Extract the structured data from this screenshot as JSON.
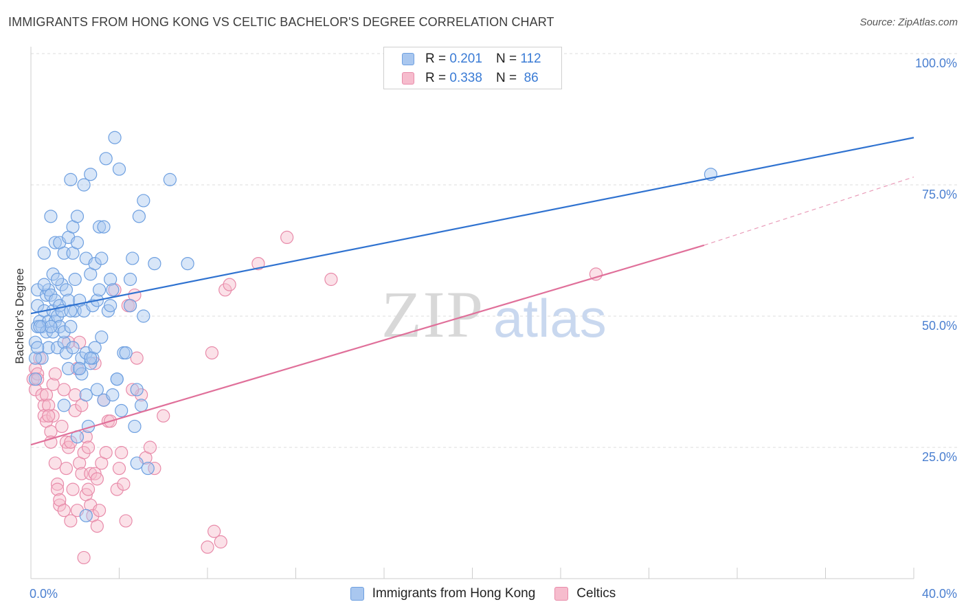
{
  "header": {
    "title": "IMMIGRANTS FROM HONG KONG VS CELTIC BACHELOR'S DEGREE CORRELATION CHART",
    "source": "Source: ZipAtlas.com"
  },
  "watermark": {
    "part1": "ZIP",
    "part2": "atlas"
  },
  "legend": {
    "rows": [
      {
        "r_label": "R =",
        "r_value": "0.201",
        "n_label": "N =",
        "n_value": "112"
      },
      {
        "r_label": "R =",
        "r_value": "0.338",
        "n_label": "N =",
        "n_value": "86"
      }
    ]
  },
  "chart_data": {
    "type": "scatter",
    "title": "IMMIGRANTS FROM HONG KONG VS CELTIC BACHELOR'S DEGREE CORRELATION CHART",
    "xlabel": "",
    "ylabel": "Bachelor's Degree",
    "xlim": [
      0,
      40
    ],
    "ylim": [
      0,
      105
    ],
    "x_tick_labels": [
      "0.0%",
      "40.0%"
    ],
    "y_ticks": [
      25,
      50,
      75,
      100
    ],
    "y_tick_labels": [
      "25.0%",
      "50.0%",
      "75.0%",
      "100.0%"
    ],
    "grid": true,
    "colors": {
      "blue_fill": "#a9c7ef",
      "blue_stroke": "#6d9fe0",
      "blue_line": "#2f72d0",
      "pink_fill": "#f6bccd",
      "pink_stroke": "#e88aa9",
      "pink_line": "#e0709a",
      "tick_text": "#4a7fd0",
      "grid": "#dddddd"
    },
    "series": [
      {
        "name": "Immigrants from Hong Kong",
        "R": 0.201,
        "N": 112,
        "trend": {
          "x": [
            0,
            40
          ],
          "y": [
            50.5,
            84
          ]
        },
        "points": [
          [
            0.2,
            45
          ],
          [
            0.3,
            48
          ],
          [
            0.3,
            52
          ],
          [
            0.3,
            55
          ],
          [
            0.4,
            49
          ],
          [
            0.5,
            42
          ],
          [
            0.5,
            48
          ],
          [
            0.6,
            62
          ],
          [
            0.6,
            51
          ],
          [
            0.7,
            54
          ],
          [
            0.7,
            47
          ],
          [
            0.8,
            44
          ],
          [
            0.8,
            49
          ],
          [
            0.8,
            55
          ],
          [
            0.9,
            69
          ],
          [
            0.9,
            54
          ],
          [
            1.0,
            58
          ],
          [
            1.0,
            47
          ],
          [
            1.0,
            51
          ],
          [
            1.1,
            64
          ],
          [
            1.1,
            53
          ],
          [
            1.1,
            49
          ],
          [
            1.2,
            50
          ],
          [
            1.2,
            44
          ],
          [
            1.3,
            64
          ],
          [
            1.3,
            52
          ],
          [
            1.3,
            48
          ],
          [
            1.4,
            56
          ],
          [
            1.4,
            51
          ],
          [
            1.5,
            45
          ],
          [
            1.5,
            62
          ],
          [
            1.5,
            47
          ],
          [
            1.6,
            43
          ],
          [
            1.6,
            55
          ],
          [
            1.7,
            65
          ],
          [
            1.7,
            53
          ],
          [
            1.7,
            40
          ],
          [
            1.8,
            48
          ],
          [
            1.8,
            76
          ],
          [
            1.9,
            67
          ],
          [
            1.9,
            62
          ],
          [
            1.9,
            44
          ],
          [
            2.0,
            57
          ],
          [
            2.0,
            51
          ],
          [
            2.1,
            69
          ],
          [
            2.1,
            64
          ],
          [
            2.2,
            53
          ],
          [
            2.2,
            40
          ],
          [
            2.3,
            39
          ],
          [
            2.3,
            42
          ],
          [
            2.4,
            75
          ],
          [
            2.4,
            51
          ],
          [
            2.5,
            61
          ],
          [
            2.5,
            35
          ],
          [
            2.5,
            43
          ],
          [
            2.6,
            29
          ],
          [
            2.7,
            77
          ],
          [
            2.7,
            58
          ],
          [
            2.7,
            41
          ],
          [
            2.8,
            52
          ],
          [
            2.8,
            42
          ],
          [
            2.9,
            44
          ],
          [
            2.9,
            60
          ],
          [
            3.0,
            36
          ],
          [
            3.0,
            53
          ],
          [
            3.1,
            55
          ],
          [
            3.1,
            67
          ],
          [
            3.2,
            61
          ],
          [
            3.3,
            34
          ],
          [
            3.3,
            67
          ],
          [
            3.4,
            80
          ],
          [
            3.5,
            51
          ],
          [
            3.6,
            52
          ],
          [
            3.6,
            57
          ],
          [
            3.7,
            55
          ],
          [
            3.7,
            35
          ],
          [
            3.8,
            84
          ],
          [
            3.9,
            38
          ],
          [
            4.0,
            78
          ],
          [
            4.1,
            32
          ],
          [
            4.2,
            43
          ],
          [
            4.3,
            43
          ],
          [
            4.5,
            57
          ],
          [
            4.5,
            52
          ],
          [
            4.6,
            61
          ],
          [
            4.8,
            36
          ],
          [
            4.8,
            22
          ],
          [
            4.9,
            69
          ],
          [
            5.1,
            72
          ],
          [
            5.1,
            50
          ],
          [
            5.3,
            21
          ],
          [
            5.6,
            60
          ],
          [
            6.3,
            76
          ],
          [
            7.1,
            60
          ],
          [
            2.5,
            12
          ],
          [
            2.1,
            27
          ],
          [
            1.5,
            33
          ],
          [
            0.9,
            48
          ],
          [
            0.4,
            48
          ],
          [
            0.2,
            42
          ],
          [
            2.2,
            40
          ],
          [
            1.8,
            51
          ],
          [
            3.9,
            38
          ],
          [
            2.7,
            42
          ],
          [
            1.2,
            57
          ],
          [
            0.6,
            56
          ],
          [
            5.0,
            33
          ],
          [
            4.7,
            29
          ],
          [
            30.8,
            77
          ],
          [
            0.3,
            44
          ],
          [
            0.2,
            38
          ],
          [
            3.2,
            46
          ]
        ]
      },
      {
        "name": "Celtics",
        "R": 0.338,
        "N": 86,
        "trend": {
          "x": [
            0,
            30.5
          ],
          "y": [
            25.5,
            63.5
          ]
        },
        "trend_dashed": {
          "x": [
            30.5,
            40
          ],
          "y": [
            63.5,
            76.5
          ]
        },
        "points": [
          [
            0.1,
            38
          ],
          [
            0.2,
            40
          ],
          [
            0.2,
            36
          ],
          [
            0.3,
            39
          ],
          [
            0.4,
            42
          ],
          [
            0.5,
            35
          ],
          [
            0.6,
            33
          ],
          [
            0.6,
            31
          ],
          [
            0.7,
            35
          ],
          [
            0.7,
            30
          ],
          [
            0.8,
            33
          ],
          [
            0.9,
            28
          ],
          [
            0.9,
            26
          ],
          [
            1.0,
            37
          ],
          [
            1.0,
            31
          ],
          [
            1.1,
            39
          ],
          [
            1.1,
            22
          ],
          [
            1.2,
            18
          ],
          [
            1.2,
            17
          ],
          [
            1.3,
            14
          ],
          [
            1.3,
            15
          ],
          [
            1.4,
            29
          ],
          [
            1.5,
            36
          ],
          [
            1.5,
            13
          ],
          [
            1.6,
            21
          ],
          [
            1.6,
            26
          ],
          [
            1.7,
            25
          ],
          [
            1.8,
            26
          ],
          [
            1.8,
            11
          ],
          [
            1.9,
            17
          ],
          [
            2.0,
            32
          ],
          [
            2.0,
            35
          ],
          [
            2.1,
            40
          ],
          [
            2.1,
            13
          ],
          [
            2.2,
            22
          ],
          [
            2.2,
            45
          ],
          [
            2.3,
            20
          ],
          [
            2.3,
            33
          ],
          [
            2.4,
            24
          ],
          [
            2.4,
            4
          ],
          [
            2.5,
            27
          ],
          [
            2.5,
            16
          ],
          [
            2.6,
            25
          ],
          [
            2.6,
            17
          ],
          [
            2.7,
            20
          ],
          [
            2.7,
            14
          ],
          [
            2.8,
            12
          ],
          [
            2.9,
            20
          ],
          [
            3.0,
            10
          ],
          [
            3.0,
            19
          ],
          [
            3.1,
            13
          ],
          [
            3.2,
            22
          ],
          [
            3.3,
            34
          ],
          [
            3.4,
            24
          ],
          [
            3.5,
            30
          ],
          [
            3.6,
            30
          ],
          [
            3.8,
            55
          ],
          [
            3.9,
            17
          ],
          [
            4.0,
            21
          ],
          [
            4.1,
            24
          ],
          [
            4.2,
            18
          ],
          [
            4.3,
            11
          ],
          [
            4.4,
            52
          ],
          [
            4.5,
            52
          ],
          [
            4.7,
            54
          ],
          [
            4.8,
            42
          ],
          [
            5.0,
            35
          ],
          [
            5.2,
            23
          ],
          [
            5.4,
            25
          ],
          [
            5.6,
            21
          ],
          [
            6.0,
            31
          ],
          [
            8.0,
            6
          ],
          [
            8.2,
            43
          ],
          [
            8.3,
            9
          ],
          [
            8.6,
            7
          ],
          [
            8.8,
            55
          ],
          [
            9.0,
            56
          ],
          [
            10.3,
            60
          ],
          [
            11.6,
            65
          ],
          [
            13.6,
            57
          ],
          [
            25.6,
            58
          ],
          [
            0.3,
            38
          ],
          [
            1.7,
            45
          ],
          [
            4.6,
            36
          ],
          [
            2.9,
            41
          ],
          [
            0.8,
            31
          ]
        ]
      }
    ]
  },
  "bottom_legend": {
    "items": [
      "Immigrants from Hong Kong",
      "Celtics"
    ]
  }
}
